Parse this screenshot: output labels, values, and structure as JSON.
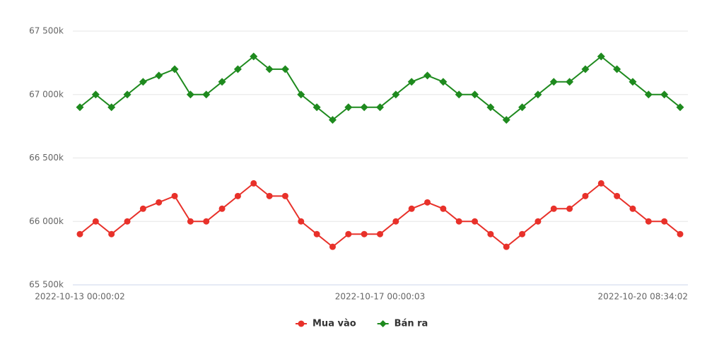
{
  "chart_data": {
    "type": "line",
    "categories": [
      "2022-10-13 00:00:02",
      null,
      null,
      null,
      null,
      null,
      null,
      null,
      null,
      null,
      null,
      null,
      null,
      null,
      null,
      null,
      null,
      null,
      null,
      "2022-10-17 00:00:03",
      null,
      null,
      null,
      null,
      null,
      null,
      null,
      null,
      null,
      null,
      null,
      null,
      null,
      null,
      null,
      null,
      null,
      null,
      "2022-10-20 08:34:02"
    ],
    "series": [
      {
        "name": "Mua vào",
        "color": "#e8312a",
        "marker": "circle",
        "values": [
          65900,
          66000,
          65900,
          66000,
          66100,
          66150,
          66200,
          66000,
          66000,
          66100,
          66200,
          66300,
          66200,
          66200,
          66000,
          65900,
          65800,
          65900,
          65900,
          65900,
          66000,
          66100,
          66150,
          66100,
          66000,
          66000,
          65900,
          65800,
          65900,
          66000,
          66100,
          66100,
          66200,
          66300,
          66200,
          66100,
          66000,
          66000,
          65900
        ]
      },
      {
        "name": "Bán ra",
        "color": "#1e8a1e",
        "marker": "diamond",
        "values": [
          66900,
          67000,
          66900,
          67000,
          67100,
          67150,
          67200,
          67000,
          67000,
          67100,
          67200,
          67300,
          67200,
          67200,
          67000,
          66900,
          66800,
          66900,
          66900,
          66900,
          67000,
          67100,
          67150,
          67100,
          67000,
          67000,
          66900,
          66800,
          66900,
          67000,
          67100,
          67100,
          67200,
          67300,
          67200,
          67100,
          67000,
          67000,
          66900
        ]
      }
    ],
    "ylim": [
      65500,
      67500
    ],
    "yticks": [
      {
        "value": 65500,
        "label": "65 500k"
      },
      {
        "value": 66000,
        "label": "66 000k"
      },
      {
        "value": 66500,
        "label": "66 500k"
      },
      {
        "value": 67000,
        "label": "67 000k"
      },
      {
        "value": 67500,
        "label": "67 500k"
      }
    ],
    "grid": true,
    "legend": "bottom"
  }
}
